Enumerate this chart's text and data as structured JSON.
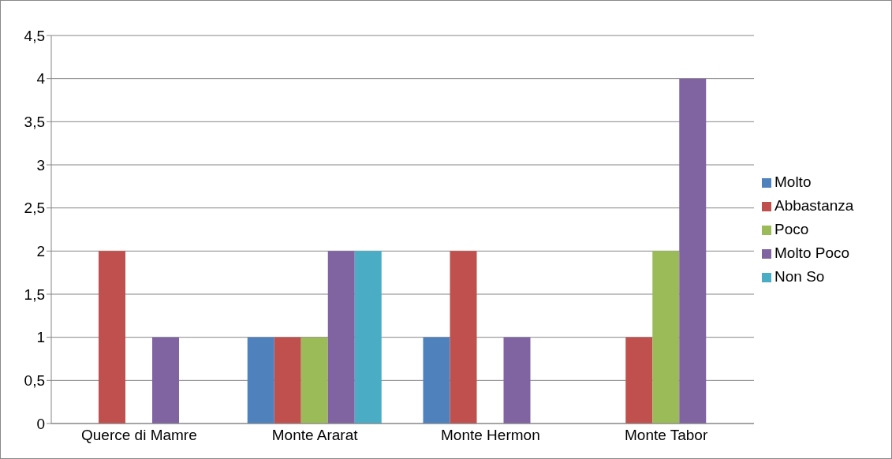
{
  "chart_data": {
    "type": "bar",
    "categories": [
      "Querce di Mamre",
      "Monte Ararat",
      "Monte Hermon",
      "Monte Tabor"
    ],
    "series": [
      {
        "name": "Molto",
        "color": "#4f81bd",
        "values": [
          0,
          1,
          1,
          0
        ]
      },
      {
        "name": "Abbastanza",
        "color": "#c0504d",
        "values": [
          2,
          1,
          2,
          1
        ]
      },
      {
        "name": "Poco",
        "color": "#9bbb59",
        "values": [
          0,
          1,
          0,
          2
        ]
      },
      {
        "name": "Molto Poco",
        "color": "#8064a2",
        "values": [
          1,
          2,
          1,
          4
        ]
      },
      {
        "name": "Non So",
        "color": "#4bacc6",
        "values": [
          0,
          2,
          0,
          0
        ]
      }
    ],
    "ylim": [
      0,
      4.5
    ],
    "yticks": [
      0,
      {
        "value": 0.5,
        "label": "0,5"
      },
      1,
      {
        "value": 1.5,
        "label": "1,5"
      },
      2,
      {
        "value": 2.5,
        "label": "2,5"
      },
      3,
      {
        "value": 3.5,
        "label": "3,5"
      },
      4,
      {
        "value": 4.5,
        "label": "4,5"
      }
    ],
    "grid": "y",
    "legend": "right"
  }
}
